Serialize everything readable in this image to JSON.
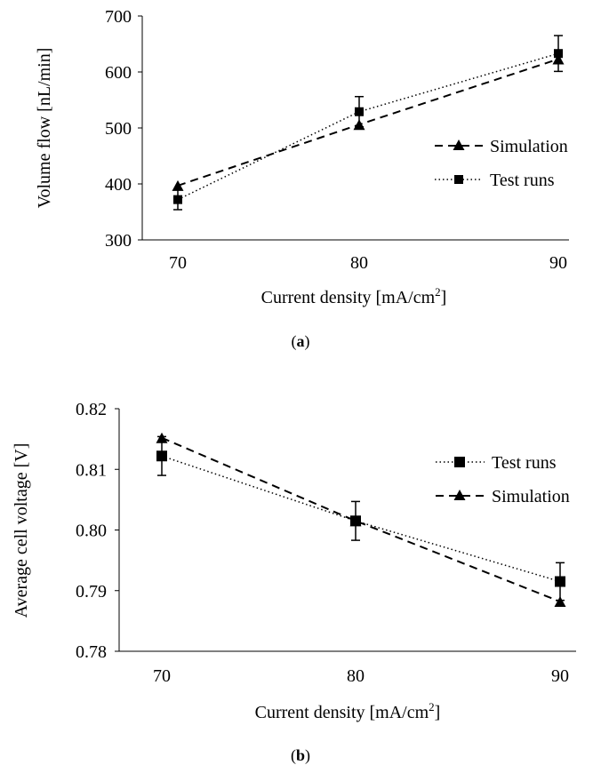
{
  "chart_data": [
    {
      "type": "line",
      "xlabel": "Current density [mA/cm",
      "xlabel_sup": "2",
      "xlabel_end": "]",
      "ylabel": "Volume flow [nL/min]",
      "x": [
        70,
        80,
        90
      ],
      "x_tick_labels": [
        "70",
        "80",
        "90"
      ],
      "y_tick_labels": [
        "300",
        "400",
        "500",
        "600",
        "700"
      ],
      "xlim": [
        70,
        90
      ],
      "ylim": [
        300,
        700
      ],
      "grid": false,
      "legend_position": "right",
      "series": [
        {
          "name": "Simulation",
          "values": [
            397,
            506,
            623
          ],
          "marker": "triangle",
          "line_style": "dashed"
        },
        {
          "name": "Test runs",
          "values": [
            372,
            529,
            633
          ],
          "error": [
            18,
            27,
            32
          ],
          "marker": "square",
          "line_style": "dotted"
        }
      ],
      "caption_open": "(",
      "caption_label": "a",
      "caption_close": ")"
    },
    {
      "type": "line",
      "xlabel": "Current density [mA/cm",
      "xlabel_sup": "2",
      "xlabel_end": "]",
      "ylabel": "Average cell voltage [V]",
      "x": [
        70,
        80,
        90
      ],
      "x_tick_labels": [
        "70",
        "80",
        "90"
      ],
      "y_tick_labels": [
        "0.78",
        "0.79",
        "0.80",
        "0.81",
        "0.82"
      ],
      "xlim": [
        70,
        90
      ],
      "ylim": [
        0.78,
        0.82
      ],
      "grid": false,
      "legend_position": "right",
      "series": [
        {
          "name": "Test runs",
          "values": [
            0.8122,
            0.8015,
            0.7915
          ],
          "error": [
            0.0032,
            0.0032,
            0.0031
          ],
          "marker": "square",
          "line_style": "dotted"
        },
        {
          "name": "Simulation",
          "values": [
            0.8152,
            0.8015,
            0.7882
          ],
          "marker": "triangle",
          "line_style": "dashed"
        }
      ],
      "caption_open": "(",
      "caption_label": "b",
      "caption_close": ")"
    }
  ]
}
